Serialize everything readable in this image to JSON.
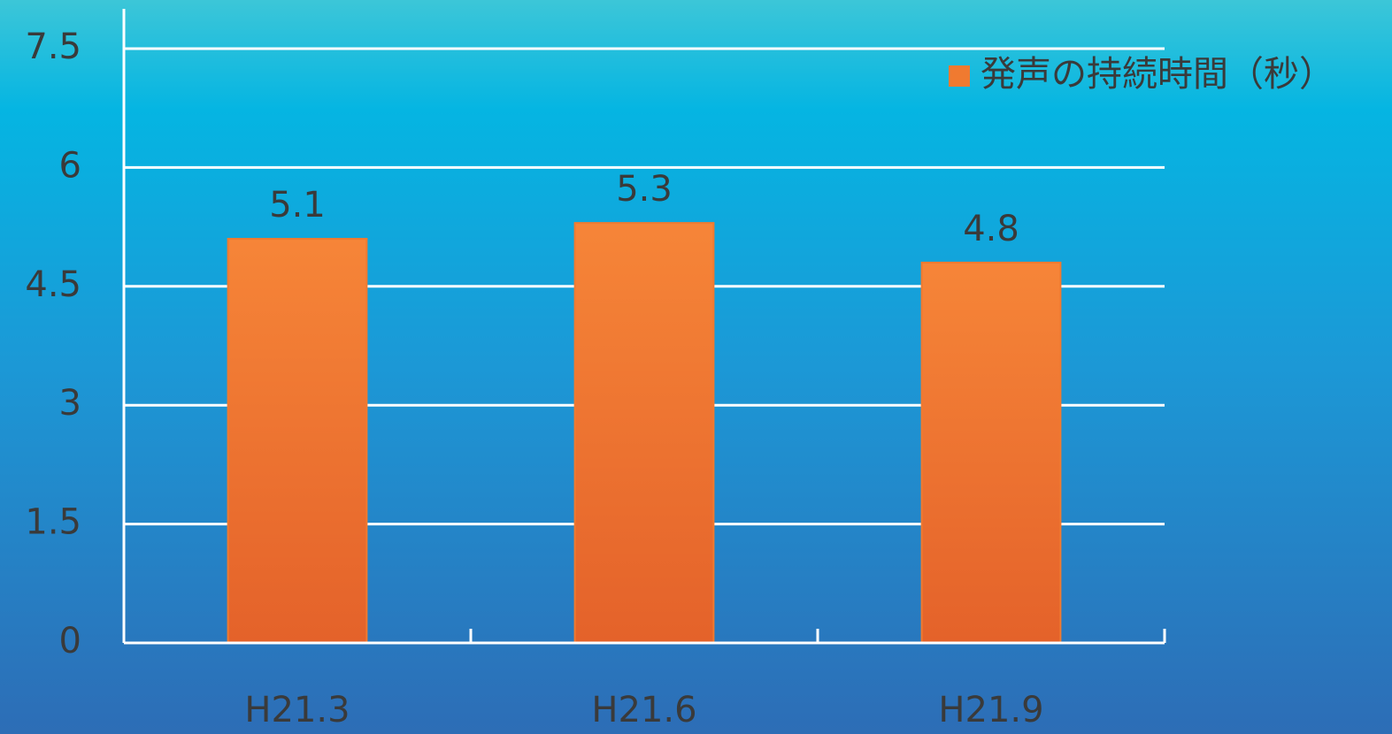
{
  "chart_data": {
    "type": "bar",
    "categories": [
      "H21.3",
      "H21.6",
      "H21.9"
    ],
    "series": [
      {
        "name": "発声の持続時間（秒）",
        "color": "#f07a30",
        "values": [
          5.1,
          5.3,
          4.8
        ]
      }
    ],
    "ylim": [
      0,
      7.5
    ],
    "yticks": [
      0,
      1.5,
      3,
      4.5,
      6,
      7.5
    ],
    "grid": true,
    "legend": "top-right"
  }
}
